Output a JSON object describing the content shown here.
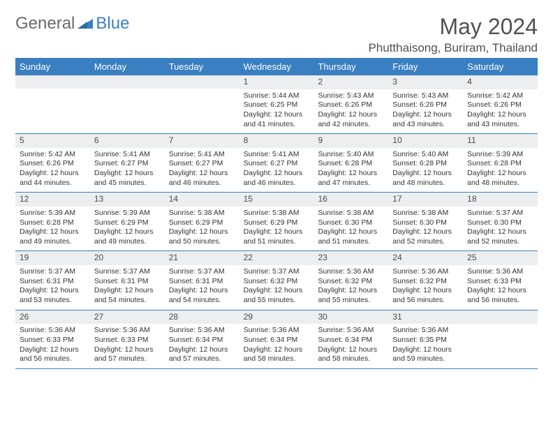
{
  "logo": {
    "text1": "General",
    "text2": "Blue"
  },
  "title": "May 2024",
  "location": "Phutthaisong, Buriram, Thailand",
  "colors": {
    "header_bg": "#3A7FC1",
    "header_text": "#ffffff",
    "daynum_bg": "#eceef0",
    "text": "#333333",
    "title_text": "#505050"
  },
  "day_headers": [
    "Sunday",
    "Monday",
    "Tuesday",
    "Wednesday",
    "Thursday",
    "Friday",
    "Saturday"
  ],
  "weeks": [
    [
      {
        "n": "",
        "sr": "",
        "ss": "",
        "dl": ""
      },
      {
        "n": "",
        "sr": "",
        "ss": "",
        "dl": ""
      },
      {
        "n": "",
        "sr": "",
        "ss": "",
        "dl": ""
      },
      {
        "n": "1",
        "sr": "Sunrise: 5:44 AM",
        "ss": "Sunset: 6:25 PM",
        "dl": "Daylight: 12 hours and 41 minutes."
      },
      {
        "n": "2",
        "sr": "Sunrise: 5:43 AM",
        "ss": "Sunset: 6:26 PM",
        "dl": "Daylight: 12 hours and 42 minutes."
      },
      {
        "n": "3",
        "sr": "Sunrise: 5:43 AM",
        "ss": "Sunset: 6:26 PM",
        "dl": "Daylight: 12 hours and 43 minutes."
      },
      {
        "n": "4",
        "sr": "Sunrise: 5:42 AM",
        "ss": "Sunset: 6:26 PM",
        "dl": "Daylight: 12 hours and 43 minutes."
      }
    ],
    [
      {
        "n": "5",
        "sr": "Sunrise: 5:42 AM",
        "ss": "Sunset: 6:26 PM",
        "dl": "Daylight: 12 hours and 44 minutes."
      },
      {
        "n": "6",
        "sr": "Sunrise: 5:41 AM",
        "ss": "Sunset: 6:27 PM",
        "dl": "Daylight: 12 hours and 45 minutes."
      },
      {
        "n": "7",
        "sr": "Sunrise: 5:41 AM",
        "ss": "Sunset: 6:27 PM",
        "dl": "Daylight: 12 hours and 46 minutes."
      },
      {
        "n": "8",
        "sr": "Sunrise: 5:41 AM",
        "ss": "Sunset: 6:27 PM",
        "dl": "Daylight: 12 hours and 46 minutes."
      },
      {
        "n": "9",
        "sr": "Sunrise: 5:40 AM",
        "ss": "Sunset: 6:28 PM",
        "dl": "Daylight: 12 hours and 47 minutes."
      },
      {
        "n": "10",
        "sr": "Sunrise: 5:40 AM",
        "ss": "Sunset: 6:28 PM",
        "dl": "Daylight: 12 hours and 48 minutes."
      },
      {
        "n": "11",
        "sr": "Sunrise: 5:39 AM",
        "ss": "Sunset: 6:28 PM",
        "dl": "Daylight: 12 hours and 48 minutes."
      }
    ],
    [
      {
        "n": "12",
        "sr": "Sunrise: 5:39 AM",
        "ss": "Sunset: 6:28 PM",
        "dl": "Daylight: 12 hours and 49 minutes."
      },
      {
        "n": "13",
        "sr": "Sunrise: 5:39 AM",
        "ss": "Sunset: 6:29 PM",
        "dl": "Daylight: 12 hours and 49 minutes."
      },
      {
        "n": "14",
        "sr": "Sunrise: 5:38 AM",
        "ss": "Sunset: 6:29 PM",
        "dl": "Daylight: 12 hours and 50 minutes."
      },
      {
        "n": "15",
        "sr": "Sunrise: 5:38 AM",
        "ss": "Sunset: 6:29 PM",
        "dl": "Daylight: 12 hours and 51 minutes."
      },
      {
        "n": "16",
        "sr": "Sunrise: 5:38 AM",
        "ss": "Sunset: 6:30 PM",
        "dl": "Daylight: 12 hours and 51 minutes."
      },
      {
        "n": "17",
        "sr": "Sunrise: 5:38 AM",
        "ss": "Sunset: 6:30 PM",
        "dl": "Daylight: 12 hours and 52 minutes."
      },
      {
        "n": "18",
        "sr": "Sunrise: 5:37 AM",
        "ss": "Sunset: 6:30 PM",
        "dl": "Daylight: 12 hours and 52 minutes."
      }
    ],
    [
      {
        "n": "19",
        "sr": "Sunrise: 5:37 AM",
        "ss": "Sunset: 6:31 PM",
        "dl": "Daylight: 12 hours and 53 minutes."
      },
      {
        "n": "20",
        "sr": "Sunrise: 5:37 AM",
        "ss": "Sunset: 6:31 PM",
        "dl": "Daylight: 12 hours and 54 minutes."
      },
      {
        "n": "21",
        "sr": "Sunrise: 5:37 AM",
        "ss": "Sunset: 6:31 PM",
        "dl": "Daylight: 12 hours and 54 minutes."
      },
      {
        "n": "22",
        "sr": "Sunrise: 5:37 AM",
        "ss": "Sunset: 6:32 PM",
        "dl": "Daylight: 12 hours and 55 minutes."
      },
      {
        "n": "23",
        "sr": "Sunrise: 5:36 AM",
        "ss": "Sunset: 6:32 PM",
        "dl": "Daylight: 12 hours and 55 minutes."
      },
      {
        "n": "24",
        "sr": "Sunrise: 5:36 AM",
        "ss": "Sunset: 6:32 PM",
        "dl": "Daylight: 12 hours and 56 minutes."
      },
      {
        "n": "25",
        "sr": "Sunrise: 5:36 AM",
        "ss": "Sunset: 6:33 PM",
        "dl": "Daylight: 12 hours and 56 minutes."
      }
    ],
    [
      {
        "n": "26",
        "sr": "Sunrise: 5:36 AM",
        "ss": "Sunset: 6:33 PM",
        "dl": "Daylight: 12 hours and 56 minutes."
      },
      {
        "n": "27",
        "sr": "Sunrise: 5:36 AM",
        "ss": "Sunset: 6:33 PM",
        "dl": "Daylight: 12 hours and 57 minutes."
      },
      {
        "n": "28",
        "sr": "Sunrise: 5:36 AM",
        "ss": "Sunset: 6:34 PM",
        "dl": "Daylight: 12 hours and 57 minutes."
      },
      {
        "n": "29",
        "sr": "Sunrise: 5:36 AM",
        "ss": "Sunset: 6:34 PM",
        "dl": "Daylight: 12 hours and 58 minutes."
      },
      {
        "n": "30",
        "sr": "Sunrise: 5:36 AM",
        "ss": "Sunset: 6:34 PM",
        "dl": "Daylight: 12 hours and 58 minutes."
      },
      {
        "n": "31",
        "sr": "Sunrise: 5:36 AM",
        "ss": "Sunset: 6:35 PM",
        "dl": "Daylight: 12 hours and 59 minutes."
      },
      {
        "n": "",
        "sr": "",
        "ss": "",
        "dl": ""
      }
    ]
  ]
}
